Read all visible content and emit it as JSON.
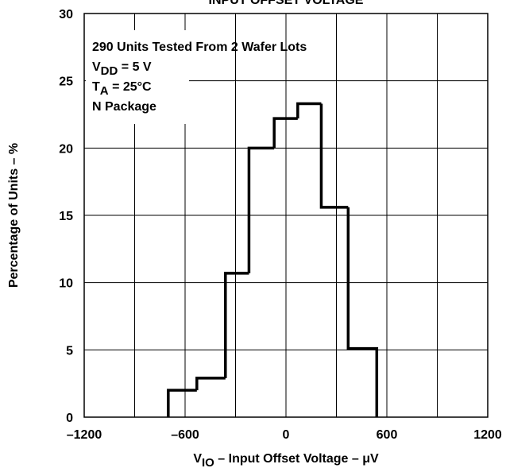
{
  "chart_data": {
    "type": "histogram",
    "title": "INPUT OFFSET VOLTAGE",
    "xlabel": {
      "main": "V",
      "sub": "IO",
      "rest": " – Input Offset Voltage – μV"
    },
    "ylabel": "Percentage of Units – %",
    "annotations": [
      {
        "main": "290 Units Tested From 2 Wafer Lots"
      },
      {
        "main": "V",
        "sub": "DD",
        "rest": " = 5 V"
      },
      {
        "main": "T",
        "sub": "A",
        "rest": " = 25°C"
      },
      {
        "main": "N Package"
      }
    ],
    "bins": [
      -700,
      -530,
      -360,
      -220,
      -70,
      70,
      210,
      370,
      540
    ],
    "counts": [
      2,
      2.9,
      10.7,
      20,
      22.2,
      23.3,
      15.6,
      5.1
    ],
    "color": "#000000",
    "xlim": [
      -1200,
      1200
    ],
    "ylim": [
      0,
      30
    ],
    "xticks": [
      {
        "value": -1200,
        "label": "–1200"
      },
      {
        "value": -600,
        "label": "–600"
      },
      0,
      600,
      1200
    ],
    "xminor": [
      -900,
      -300,
      300,
      900
    ],
    "yticks": [
      0,
      5,
      10,
      15,
      20,
      25,
      30
    ],
    "grid": true
  }
}
